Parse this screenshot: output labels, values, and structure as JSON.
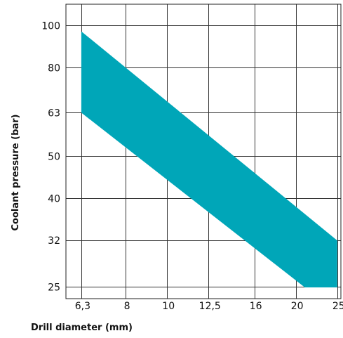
{
  "chart_data": {
    "type": "area",
    "title": "",
    "xlabel": "Drill diameter (mm)",
    "ylabel": "Coolant pressure (bar)",
    "x_scale": "log",
    "y_scale": "log",
    "x_ticks": [
      {
        "value": 6.3,
        "label": "6,3"
      },
      {
        "value": 8,
        "label": "8"
      },
      {
        "value": 10,
        "label": "10"
      },
      {
        "value": 12.5,
        "label": "12,5"
      },
      {
        "value": 16,
        "label": "16"
      },
      {
        "value": 20,
        "label": "20"
      },
      {
        "value": 25,
        "label": "25"
      }
    ],
    "y_ticks": [
      {
        "value": 25,
        "label": "25"
      },
      {
        "value": 32,
        "label": "32"
      },
      {
        "value": 40,
        "label": "40"
      },
      {
        "value": 50,
        "label": "50"
      },
      {
        "value": 63,
        "label": "63"
      },
      {
        "value": 80,
        "label": "80"
      },
      {
        "value": 100,
        "label": "100"
      }
    ],
    "xlim": [
      5.8,
      25.5
    ],
    "ylim": [
      23.5,
      112
    ],
    "grid": true,
    "band": {
      "color": "#00a6b8",
      "upper": [
        {
          "x": 6.3,
          "y": 97
        },
        {
          "x": 25,
          "y": 32
        }
      ],
      "lower": [
        {
          "x": 6.3,
          "y": 63
        },
        {
          "x": 21,
          "y": 24
        }
      ],
      "right_edge_x": 25
    }
  }
}
